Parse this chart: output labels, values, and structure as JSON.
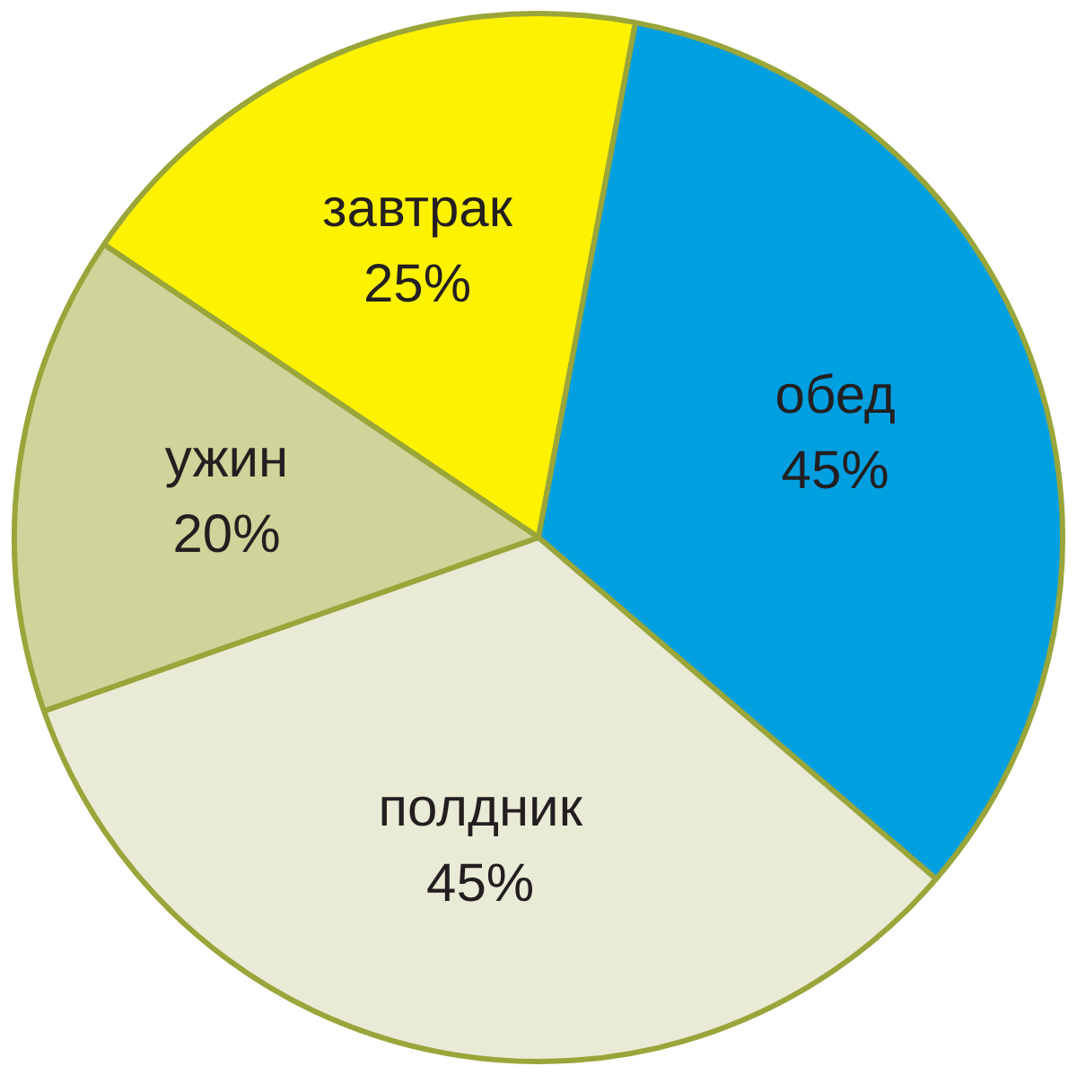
{
  "chart_data": {
    "type": "pie",
    "categories": [
      "завтрак",
      "обед",
      "полдник",
      "ужин"
    ],
    "values": [
      25,
      45,
      45,
      20
    ],
    "colors": [
      "#fff200",
      "#00a0e0",
      "#e9ebd6",
      "#d0d39a"
    ],
    "value_labels": [
      "25%",
      "45%",
      "45%",
      "20%"
    ],
    "legend": false
  }
}
